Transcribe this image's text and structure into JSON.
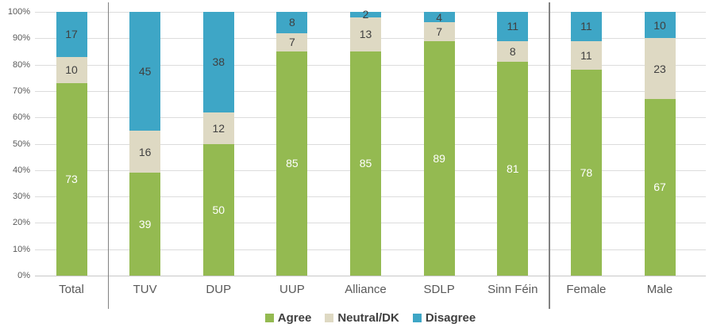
{
  "chart_data": {
    "type": "bar",
    "stacked": true,
    "unit": "%",
    "title": "",
    "categories": [
      "Total",
      "TUV",
      "DUP",
      "UUP",
      "Alliance",
      "SDLP",
      "Sinn Féin",
      "Female",
      "Male"
    ],
    "series": [
      {
        "name": "Agree",
        "color": "#94ba51",
        "label_color": "#ffffff",
        "values": [
          73,
          39,
          50,
          85,
          85,
          89,
          81,
          78,
          67
        ]
      },
      {
        "name": "Neutral/DK",
        "color": "#ded9c3",
        "label_color": "#404040",
        "values": [
          10,
          16,
          12,
          7,
          13,
          7,
          8,
          11,
          23
        ]
      },
      {
        "name": "Disagree",
        "color": "#3ea6c6",
        "label_color": "#404040",
        "values": [
          17,
          45,
          38,
          8,
          2,
          4,
          11,
          11,
          10
        ]
      }
    ],
    "y_axis": {
      "min": 0,
      "max": 100,
      "ticks": [
        "0%",
        "10%",
        "20%",
        "30%",
        "40%",
        "50%",
        "60%",
        "70%",
        "80%",
        "90%",
        "100%"
      ]
    },
    "legend": {
      "position": "bottom",
      "items": [
        "Agree",
        "Neutral/DK",
        "Disagree"
      ]
    },
    "group_separators_after_categories": [
      "Total",
      "Sinn Féin"
    ],
    "grid": true,
    "ylim": [
      0,
      100
    ]
  },
  "colors": {
    "gridline": "#dcdcdc",
    "baseline": "#c8c8c8",
    "separator": "#828282",
    "axis_text": "#595959",
    "value_text_dark": "#404040",
    "value_text_light": "#ffffff"
  }
}
